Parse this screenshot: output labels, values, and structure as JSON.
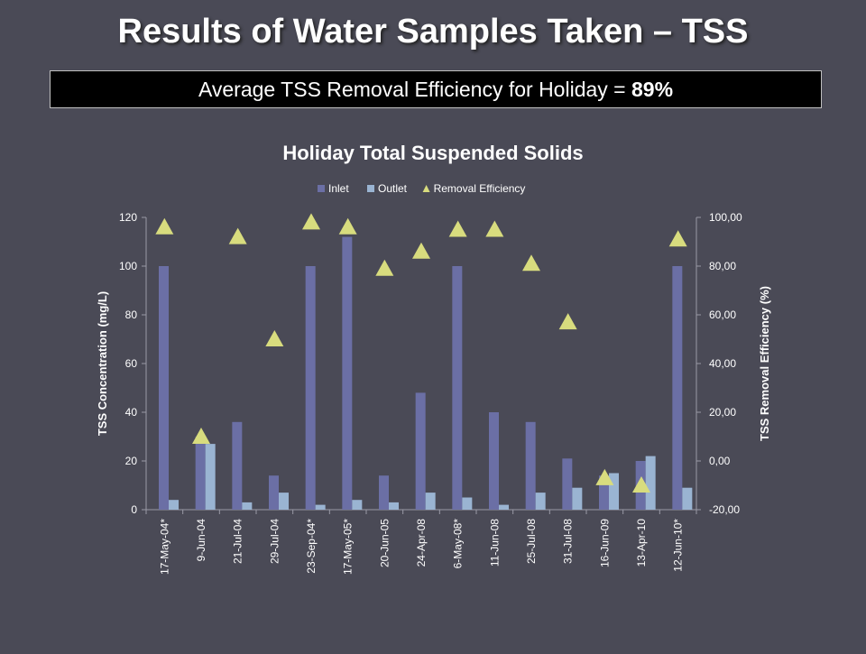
{
  "slide": {
    "title": "Results of Water Samples Taken – TSS",
    "banner_label": "Average TSS Removal Efficiency  for  Holiday",
    "banner_eq": " = ",
    "banner_value": "89%"
  },
  "chart_data": {
    "type": "bar",
    "title": "Holiday Total Suspended Solids",
    "categories": [
      "17-May-04*",
      "9-Jun-04",
      "21-Jul-04",
      "29-Jul-04",
      "23-Sep-04*",
      "17-May-05*",
      "20-Jun-05",
      "24-Apr-08",
      "6-May-08*",
      "11-Jun-08",
      "25-Jul-08",
      "31-Jul-08",
      "16-Jun-09",
      "13-Apr-10",
      "12-Jun-10*"
    ],
    "series": [
      {
        "name": "Inlet",
        "type": "bar",
        "axis": "left",
        "color": "#6b6fa5",
        "values": [
          100,
          30,
          36,
          14,
          100,
          112,
          14,
          48,
          100,
          40,
          36,
          21,
          14,
          20,
          100
        ]
      },
      {
        "name": "Outlet",
        "type": "bar",
        "axis": "left",
        "color": "#9ab4d2",
        "values": [
          4,
          27,
          3,
          7,
          2,
          4,
          3,
          7,
          5,
          2,
          7,
          9,
          15,
          22,
          9
        ]
      },
      {
        "name": "Removal Efficiency",
        "type": "scatter",
        "marker": "triangle",
        "axis": "right",
        "color": "#d8dc7e",
        "values": [
          96,
          10,
          92,
          50,
          98,
          96,
          79,
          86,
          95,
          95,
          81,
          57,
          -7,
          -10,
          91
        ]
      }
    ],
    "ylabel": "TSS Concentration (mg/L)",
    "ylim": [
      0,
      120
    ],
    "yticks": [
      "0",
      "20",
      "40",
      "60",
      "80",
      "100",
      "120"
    ],
    "y2label": "TSS Removal Efficiency (%)",
    "y2lim": [
      -20,
      100
    ],
    "y2ticks": [
      "-20,00",
      "0,00",
      "20,00",
      "40,00",
      "60,00",
      "80,00",
      "100,00"
    ],
    "legend_position": "top",
    "grid": false
  }
}
